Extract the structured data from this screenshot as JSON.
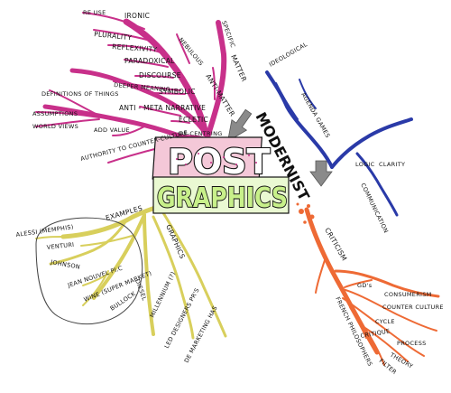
{
  "center": {
    "line1": "POST",
    "line2": "GRAPHICS",
    "side": "MODERNIST"
  },
  "colors": {
    "pink": "#c8308a",
    "blue": "#2a3aa8",
    "orange": "#ee6a35",
    "yellow": "#d8cf5c",
    "green": "#9bd65a"
  },
  "pink_branch": {
    "labels": {
      "ironic": "IRONIC",
      "re_use": "RE USE",
      "plurality": "PLURALITY",
      "reflexivity": "REFLEXIVITY",
      "paradoxical": "PARADOXICAL",
      "discourse": "DISCOURSE",
      "deeper": "DEEPER MEANING",
      "symbolic": "SYMBOLIC",
      "definitions": "DEFINITIONS OF THINGS",
      "assumptions": "ASSUMPTIONS",
      "world_views": "WORLD VIEWS",
      "anti_meta": "ANTI - META NARRATIVE",
      "eclectic": "ECLETIC",
      "add_value": "ADD VALUE",
      "de_centring": "DE-CENTRING",
      "authority": "AUTHORITY TO COUNTER-CULTURE",
      "nebulous": "NEBULOUS",
      "anti_matter": "ANTI-MATTER",
      "specific": "SPECIFIC",
      "matter": "MATTER"
    }
  },
  "blue_branch": {
    "labels": {
      "ideological": "IDEOLOGICAL",
      "agenda": "AGENDA GAMES",
      "logic": "LOGIC",
      "clarity": "CLARITY",
      "communication": "COMMUNICATION"
    }
  },
  "orange_branch": {
    "labels": {
      "criticism": "CRITICISM",
      "gd": "GD's",
      "consumerism": "CONSUMERISM",
      "counter_culture": "COUNTER CULTURE",
      "cycle": "CYCLE",
      "french": "FRENCH PHILOSOPHERS",
      "critique": "CRITIQUE",
      "process": "PROCESS",
      "theory": "THEORY",
      "filter": "FILTER"
    }
  },
  "yellow_branch": {
    "labels": {
      "examples": "EXAMPLES",
      "alessi": "ALESSI (MEMPHIS)",
      "venturi": "VENTURI",
      "johnson": "JOHNSON",
      "jean_nouvel": "JEAN NOUVEL Pl.C",
      "wine": "WINE (SUPER MARKET)",
      "bullock": "BULLOCK",
      "diesel": "DIESEL",
      "graphics": "GRAPHICS",
      "millennium": "MILLENNIUM (?)",
      "led": "LED DESIGNERS PR'S",
      "de_marketing": "DE MARKETING HAS"
    }
  }
}
